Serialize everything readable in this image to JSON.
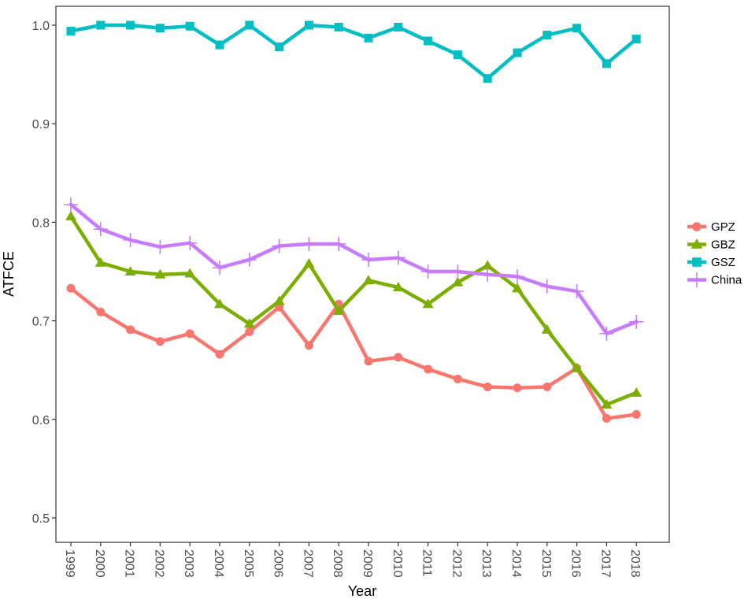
{
  "chart_data": {
    "type": "line",
    "title": "",
    "xlabel": "Year",
    "ylabel": "ATFCE",
    "x": [
      "1999",
      "2000",
      "2001",
      "2002",
      "2003",
      "2004",
      "2005",
      "2006",
      "2007",
      "2008",
      "2009",
      "2010",
      "2011",
      "2012",
      "2013",
      "2014",
      "2015",
      "2016",
      "2017",
      "2018"
    ],
    "ylim": [
      0.5,
      1.02
    ],
    "yticks": [
      "0.5",
      "0.6",
      "0.7",
      "0.8",
      "0.9",
      "1.0"
    ],
    "grid": false,
    "legend_position": "right",
    "series": [
      {
        "name": "GPZ",
        "color": "#F8766D",
        "marker": "circle",
        "values": [
          0.733,
          0.709,
          0.691,
          0.679,
          0.687,
          0.666,
          0.689,
          0.714,
          0.675,
          0.717,
          0.659,
          0.663,
          0.651,
          0.641,
          0.633,
          0.632,
          0.633,
          0.652,
          0.601,
          0.605
        ]
      },
      {
        "name": "GBZ",
        "color": "#7CAE00",
        "marker": "triangle",
        "values": [
          0.806,
          0.759,
          0.75,
          0.747,
          0.748,
          0.717,
          0.697,
          0.72,
          0.758,
          0.71,
          0.741,
          0.734,
          0.717,
          0.739,
          0.756,
          0.733,
          0.691,
          0.652,
          0.615,
          0.627
        ]
      },
      {
        "name": "GSZ",
        "color": "#00BFC4",
        "marker": "square",
        "values": [
          0.994,
          1.0,
          1.0,
          0.997,
          0.999,
          0.98,
          1.0,
          0.978,
          1.0,
          0.998,
          0.987,
          0.998,
          0.984,
          0.97,
          0.946,
          0.972,
          0.99,
          0.997,
          0.961,
          0.986
        ]
      },
      {
        "name": "China",
        "color": "#C77CFF",
        "marker": "plus",
        "values": [
          0.818,
          0.793,
          0.782,
          0.775,
          0.779,
          0.754,
          0.762,
          0.776,
          0.778,
          0.778,
          0.762,
          0.764,
          0.75,
          0.75,
          0.747,
          0.745,
          0.735,
          0.73,
          0.687,
          0.699
        ]
      }
    ]
  }
}
